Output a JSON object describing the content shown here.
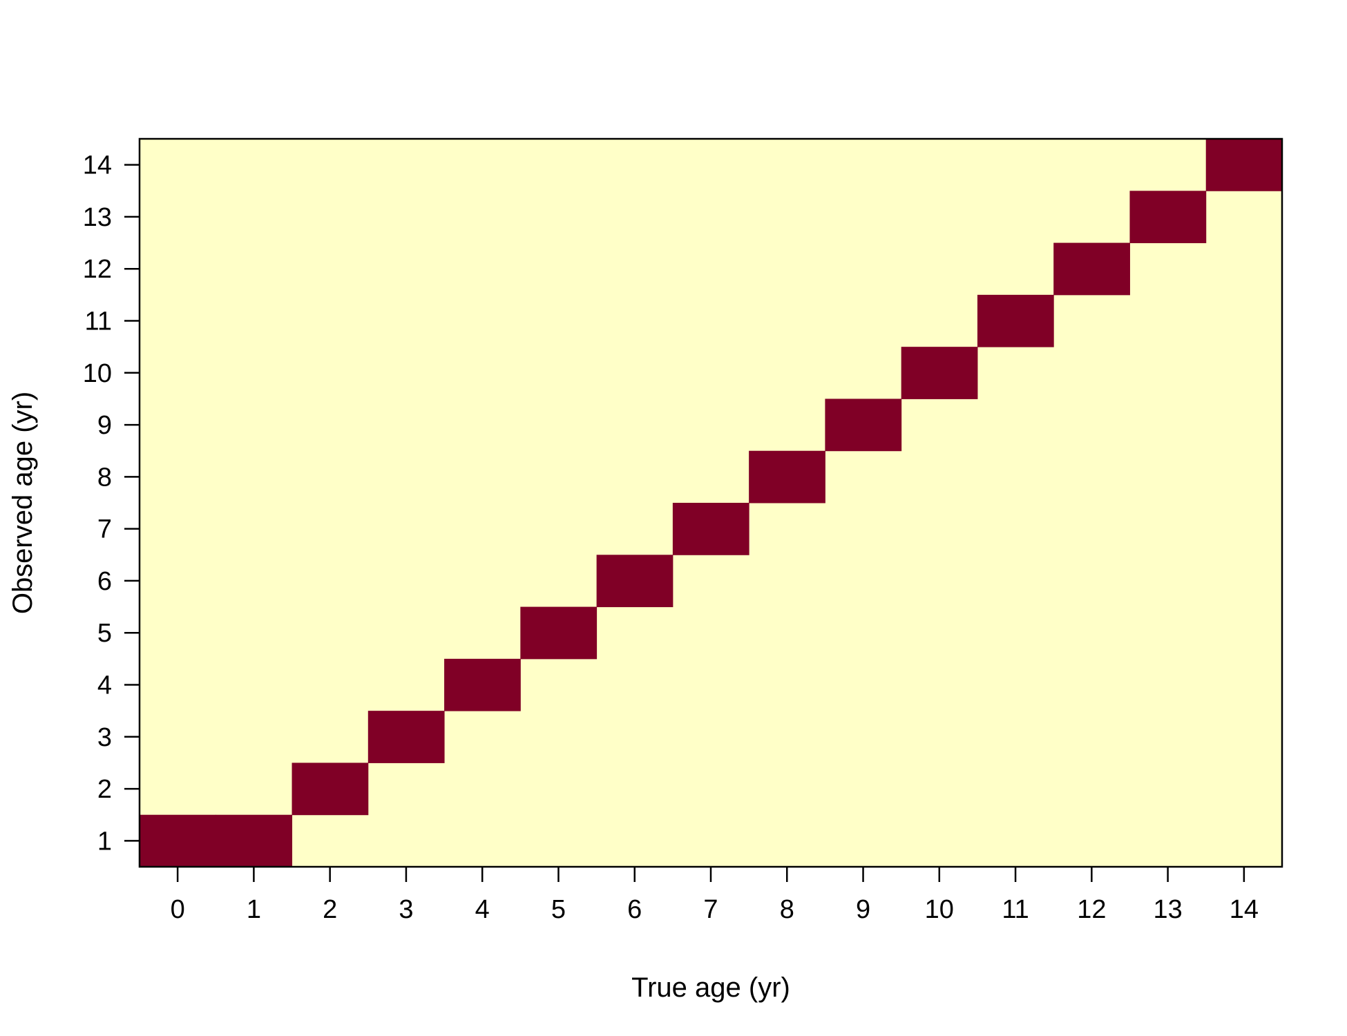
{
  "chart_data": {
    "type": "heatmap",
    "xlabel": "True age (yr)",
    "ylabel": "Observed age (yr)",
    "x_categories": [
      "0",
      "1",
      "2",
      "3",
      "4",
      "5",
      "6",
      "7",
      "8",
      "9",
      "10",
      "11",
      "12",
      "13",
      "14"
    ],
    "y_categories": [
      "1",
      "2",
      "3",
      "4",
      "5",
      "6",
      "7",
      "8",
      "9",
      "10",
      "11",
      "12",
      "13",
      "14"
    ],
    "cells": [
      {
        "x": "0",
        "y": "1"
      },
      {
        "x": "1",
        "y": "1"
      },
      {
        "x": "2",
        "y": "2"
      },
      {
        "x": "3",
        "y": "3"
      },
      {
        "x": "4",
        "y": "4"
      },
      {
        "x": "5",
        "y": "5"
      },
      {
        "x": "6",
        "y": "6"
      },
      {
        "x": "7",
        "y": "7"
      },
      {
        "x": "8",
        "y": "8"
      },
      {
        "x": "9",
        "y": "9"
      },
      {
        "x": "10",
        "y": "10"
      },
      {
        "x": "11",
        "y": "11"
      },
      {
        "x": "12",
        "y": "12"
      },
      {
        "x": "13",
        "y": "13"
      },
      {
        "x": "14",
        "y": "14"
      }
    ],
    "colors": {
      "background": "#FFFFC8",
      "cell": "#800026",
      "frame": "#000000"
    },
    "grid": false,
    "legend": "none"
  }
}
